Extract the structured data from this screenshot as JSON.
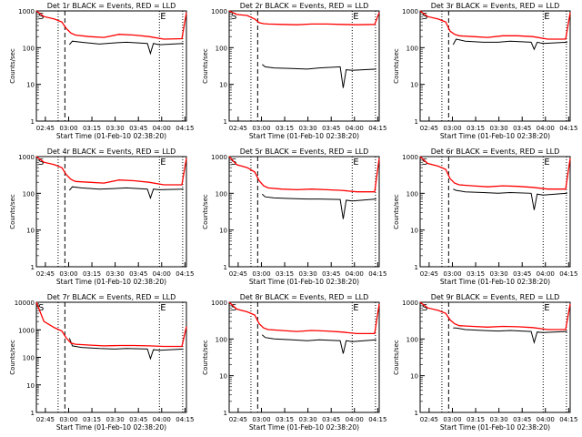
{
  "colors": {
    "events": "#000000",
    "lld": "#ff0000",
    "axes": "#000000",
    "background": "#ffffff"
  },
  "chart_data": [
    {
      "type": "line",
      "title": "Det 1r BLACK = Events, RED = LLD",
      "xlabel": "Start Time (01-Feb-10 02:38:20)",
      "ylabel": "Counts/sec",
      "x_ticks": [
        "02:45",
        "03:00",
        "03:15",
        "03:30",
        "03:45",
        "04:00",
        "04:15"
      ],
      "y_ticks": [
        "1",
        "10",
        "100",
        "1000"
      ],
      "ylim": [
        1,
        1000
      ],
      "yscale": "log",
      "markers": [
        "S",
        "E"
      ],
      "series": [
        {
          "name": "BLACK = Events",
          "color": "#000000",
          "x": [
            0.14,
            0.19,
            0.22,
            0.24,
            0.3,
            0.42,
            0.52,
            0.6,
            0.74,
            0.76,
            0.78,
            0.82,
            0.98
          ],
          "y": [
            0,
            0,
            120,
            150,
            140,
            125,
            135,
            140,
            130,
            70,
            130,
            120,
            130
          ]
        },
        {
          "name": "RED = LLD",
          "color": "#ff0000",
          "x": [
            0.0,
            0.05,
            0.12,
            0.17,
            0.2,
            0.23,
            0.26,
            0.35,
            0.45,
            0.55,
            0.65,
            0.75,
            0.85,
            0.97,
            1.0
          ],
          "y": [
            1000,
            700,
            600,
            500,
            330,
            250,
            220,
            200,
            190,
            230,
            220,
            200,
            170,
            175,
            900
          ]
        }
      ]
    },
    {
      "type": "line",
      "title": "Det 2r BLACK = Events, RED = LLD",
      "xlabel": "Start Time (01-Feb-10 02:38:20)",
      "ylabel": "Counts/sec",
      "x_ticks": [
        "02:45",
        "03:00",
        "03:15",
        "03:30",
        "03:45",
        "04:00",
        "04:15"
      ],
      "y_ticks": [
        "1",
        "10",
        "100",
        "1000"
      ],
      "ylim": [
        1,
        1000
      ],
      "yscale": "log",
      "markers": [
        "S",
        "E"
      ],
      "series": [
        {
          "name": "BLACK = Events",
          "color": "#000000",
          "x": [
            0.14,
            0.19,
            0.22,
            0.24,
            0.3,
            0.42,
            0.52,
            0.6,
            0.74,
            0.76,
            0.78,
            0.82,
            0.98
          ],
          "y": [
            0,
            0,
            35,
            30,
            28,
            27,
            26,
            28,
            30,
            8,
            25,
            24,
            26
          ]
        },
        {
          "name": "RED = LLD",
          "color": "#ff0000",
          "x": [
            0.0,
            0.05,
            0.12,
            0.17,
            0.2,
            0.23,
            0.26,
            0.35,
            0.45,
            0.55,
            0.65,
            0.75,
            0.85,
            0.97,
            1.0
          ],
          "y": [
            1000,
            800,
            750,
            600,
            480,
            450,
            440,
            430,
            420,
            440,
            440,
            430,
            420,
            430,
            900
          ]
        }
      ]
    },
    {
      "type": "line",
      "title": "Det 3r BLACK = Events, RED = LLD",
      "xlabel": "Start Time (01-Feb-10 02:38:20)",
      "ylabel": "Counts/sec",
      "x_ticks": [
        "02:45",
        "03:00",
        "03:15",
        "03:30",
        "03:45",
        "04:00",
        "04:15"
      ],
      "y_ticks": [
        "1",
        "10",
        "100",
        "1000"
      ],
      "ylim": [
        1,
        1000
      ],
      "yscale": "log",
      "markers": [
        "S",
        "E"
      ],
      "series": [
        {
          "name": "BLACK = Events",
          "color": "#000000",
          "x": [
            0.14,
            0.19,
            0.22,
            0.24,
            0.3,
            0.42,
            0.52,
            0.6,
            0.74,
            0.76,
            0.78,
            0.82,
            0.98
          ],
          "y": [
            0,
            0,
            120,
            170,
            150,
            140,
            140,
            150,
            140,
            90,
            140,
            130,
            140
          ]
        },
        {
          "name": "RED = LLD",
          "color": "#ff0000",
          "x": [
            0.0,
            0.05,
            0.12,
            0.17,
            0.2,
            0.23,
            0.26,
            0.35,
            0.45,
            0.55,
            0.65,
            0.75,
            0.85,
            0.97,
            1.0
          ],
          "y": [
            1000,
            700,
            600,
            500,
            280,
            230,
            210,
            200,
            190,
            210,
            210,
            200,
            170,
            170,
            900
          ]
        }
      ]
    },
    {
      "type": "line",
      "title": "Det 4r BLACK = Events, RED = LLD",
      "xlabel": "Start Time (01-Feb-10 02:38:20)",
      "ylabel": "Counts/sec",
      "x_ticks": [
        "02:45",
        "03:00",
        "03:15",
        "03:30",
        "03:45",
        "04:00",
        "04:15"
      ],
      "y_ticks": [
        "1",
        "10",
        "100",
        "1000"
      ],
      "ylim": [
        1,
        1000
      ],
      "yscale": "log",
      "markers": [
        "S",
        "E"
      ],
      "series": [
        {
          "name": "BLACK = Events",
          "color": "#000000",
          "x": [
            0.14,
            0.19,
            0.22,
            0.24,
            0.3,
            0.42,
            0.52,
            0.6,
            0.74,
            0.76,
            0.78,
            0.82,
            0.98
          ],
          "y": [
            0,
            0,
            120,
            150,
            140,
            130,
            135,
            140,
            130,
            75,
            130,
            125,
            130
          ]
        },
        {
          "name": "RED = LLD",
          "color": "#ff0000",
          "x": [
            0.0,
            0.05,
            0.12,
            0.17,
            0.2,
            0.23,
            0.26,
            0.35,
            0.45,
            0.55,
            0.65,
            0.75,
            0.85,
            0.97,
            1.0
          ],
          "y": [
            1000,
            700,
            600,
            500,
            320,
            240,
            210,
            200,
            190,
            230,
            220,
            200,
            170,
            170,
            900
          ]
        }
      ]
    },
    {
      "type": "line",
      "title": "Det 5r BLACK = Events, RED = LLD",
      "xlabel": "Start Time (01-Feb-10 02:38:20)",
      "ylabel": "Counts/sec",
      "x_ticks": [
        "02:45",
        "03:00",
        "03:15",
        "03:30",
        "03:45",
        "04:00",
        "04:15"
      ],
      "y_ticks": [
        "1",
        "10",
        "100",
        "1000"
      ],
      "ylim": [
        1,
        1000
      ],
      "yscale": "log",
      "markers": [
        "S",
        "E"
      ],
      "series": [
        {
          "name": "BLACK = Events",
          "color": "#000000",
          "x": [
            0.14,
            0.19,
            0.22,
            0.24,
            0.3,
            0.42,
            0.52,
            0.6,
            0.74,
            0.76,
            0.78,
            0.82,
            0.98
          ],
          "y": [
            0,
            0,
            95,
            80,
            75,
            72,
            70,
            70,
            68,
            20,
            65,
            62,
            70
          ]
        },
        {
          "name": "RED = LLD",
          "color": "#ff0000",
          "x": [
            0.0,
            0.05,
            0.12,
            0.17,
            0.2,
            0.23,
            0.26,
            0.35,
            0.45,
            0.55,
            0.65,
            0.75,
            0.85,
            0.97,
            1.0
          ],
          "y": [
            1000,
            600,
            500,
            380,
            220,
            160,
            140,
            130,
            125,
            130,
            125,
            120,
            110,
            110,
            900
          ]
        }
      ]
    },
    {
      "type": "line",
      "title": "Det 6r BLACK = Events, RED = LLD",
      "xlabel": "Start Time (01-Feb-10 02:38:20)",
      "ylabel": "Counts/sec",
      "x_ticks": [
        "02:45",
        "03:00",
        "03:15",
        "03:30",
        "03:45",
        "04:00",
        "04:15"
      ],
      "y_ticks": [
        "1",
        "10",
        "100",
        "1000"
      ],
      "ylim": [
        1,
        1000
      ],
      "yscale": "log",
      "markers": [
        "S",
        "E"
      ],
      "series": [
        {
          "name": "BLACK = Events",
          "color": "#000000",
          "x": [
            0.14,
            0.19,
            0.22,
            0.24,
            0.3,
            0.42,
            0.52,
            0.6,
            0.74,
            0.76,
            0.78,
            0.82,
            0.98
          ],
          "y": [
            0,
            0,
            130,
            120,
            110,
            105,
            100,
            105,
            100,
            35,
            95,
            90,
            100
          ]
        },
        {
          "name": "RED = LLD",
          "color": "#ff0000",
          "x": [
            0.0,
            0.05,
            0.12,
            0.17,
            0.2,
            0.23,
            0.26,
            0.35,
            0.45,
            0.55,
            0.65,
            0.75,
            0.85,
            0.97,
            1.0
          ],
          "y": [
            1000,
            650,
            550,
            450,
            250,
            190,
            170,
            160,
            150,
            160,
            155,
            145,
            130,
            130,
            900
          ]
        }
      ]
    },
    {
      "type": "line",
      "title": "Det 7r BLACK = Events, RED = LLD",
      "xlabel": "Start Time (01-Feb-10 02:38:20)",
      "ylabel": "Counts/sec",
      "x_ticks": [
        "02:45",
        "03:00",
        "03:15",
        "03:30",
        "03:45",
        "04:00",
        "04:15"
      ],
      "y_ticks": [
        "1",
        "10",
        "100",
        "1000",
        "10000"
      ],
      "ylim": [
        1,
        10000
      ],
      "yscale": "log",
      "markers": [
        "S",
        "E"
      ],
      "series": [
        {
          "name": "BLACK = Events",
          "color": "#000000",
          "x": [
            0.14,
            0.19,
            0.22,
            0.24,
            0.3,
            0.42,
            0.52,
            0.6,
            0.74,
            0.76,
            0.78,
            0.82,
            0.98
          ],
          "y": [
            0,
            0,
            500,
            260,
            230,
            210,
            200,
            210,
            200,
            90,
            190,
            180,
            200
          ]
        },
        {
          "name": "RED = LLD",
          "color": "#ff0000",
          "x": [
            0.0,
            0.05,
            0.12,
            0.17,
            0.2,
            0.23,
            0.26,
            0.35,
            0.45,
            0.55,
            0.65,
            0.75,
            0.85,
            0.97,
            1.0
          ],
          "y": [
            10000,
            2000,
            1200,
            900,
            500,
            330,
            300,
            280,
            260,
            270,
            270,
            260,
            250,
            250,
            1300
          ]
        }
      ]
    },
    {
      "type": "line",
      "title": "Det 8r BLACK = Events, RED = LLD",
      "xlabel": "Start Time (01-Feb-10 02:38:20)",
      "ylabel": "Counts/sec",
      "x_ticks": [
        "02:45",
        "03:00",
        "03:15",
        "03:30",
        "03:45",
        "04:00",
        "04:15"
      ],
      "y_ticks": [
        "1",
        "10",
        "100",
        "1000"
      ],
      "ylim": [
        1,
        1000
      ],
      "yscale": "log",
      "markers": [
        "S",
        "E"
      ],
      "series": [
        {
          "name": "BLACK = Events",
          "color": "#000000",
          "x": [
            0.14,
            0.19,
            0.22,
            0.24,
            0.3,
            0.42,
            0.52,
            0.6,
            0.74,
            0.76,
            0.78,
            0.82,
            0.98
          ],
          "y": [
            0,
            0,
            130,
            110,
            100,
            95,
            90,
            95,
            90,
            40,
            90,
            85,
            95
          ]
        },
        {
          "name": "RED = LLD",
          "color": "#ff0000",
          "x": [
            0.0,
            0.05,
            0.12,
            0.17,
            0.2,
            0.23,
            0.26,
            0.35,
            0.45,
            0.55,
            0.65,
            0.75,
            0.85,
            0.97,
            1.0
          ],
          "y": [
            1000,
            650,
            550,
            450,
            260,
            200,
            180,
            170,
            160,
            170,
            165,
            155,
            140,
            140,
            900
          ]
        }
      ]
    },
    {
      "type": "line",
      "title": "Det 9r BLACK = Events, RED = LLD",
      "xlabel": "Start Time (01-Feb-10 02:38:20)",
      "ylabel": "Counts/sec",
      "x_ticks": [
        "02:45",
        "03:00",
        "03:15",
        "03:30",
        "03:45",
        "04:00",
        "04:15"
      ],
      "y_ticks": [
        "1",
        "10",
        "100",
        "1000"
      ],
      "ylim": [
        1,
        1000
      ],
      "yscale": "log",
      "markers": [
        "S",
        "E"
      ],
      "series": [
        {
          "name": "BLACK = Events",
          "color": "#000000",
          "x": [
            0.14,
            0.19,
            0.22,
            0.24,
            0.3,
            0.42,
            0.52,
            0.6,
            0.74,
            0.76,
            0.78,
            0.82,
            0.98
          ],
          "y": [
            0,
            0,
            200,
            200,
            180,
            170,
            165,
            170,
            160,
            80,
            155,
            150,
            160
          ]
        },
        {
          "name": "RED = LLD",
          "color": "#ff0000",
          "x": [
            0.0,
            0.05,
            0.12,
            0.17,
            0.2,
            0.23,
            0.26,
            0.35,
            0.45,
            0.55,
            0.65,
            0.75,
            0.85,
            0.97,
            1.0
          ],
          "y": [
            1000,
            700,
            600,
            500,
            330,
            260,
            230,
            220,
            210,
            220,
            215,
            205,
            180,
            180,
            900
          ]
        }
      ]
    }
  ]
}
